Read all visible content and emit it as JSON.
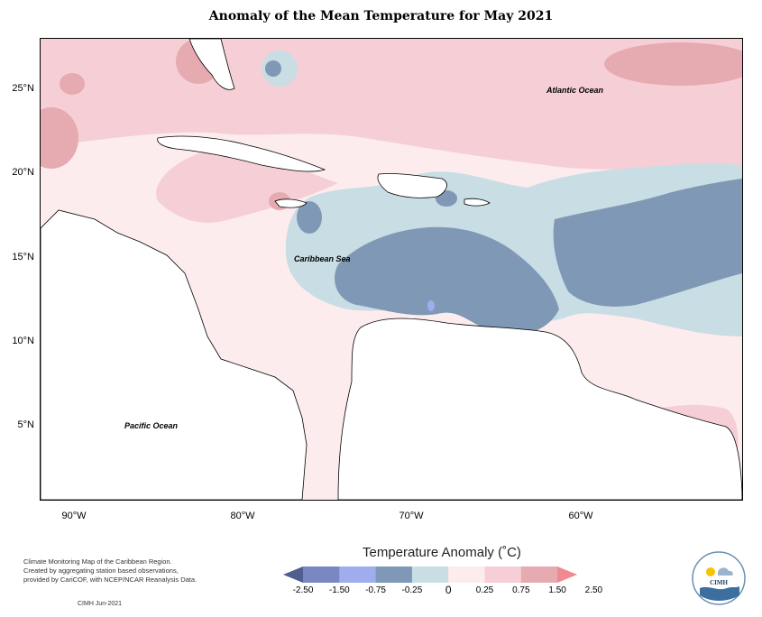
{
  "title": "Anomaly of the Mean Temperature for May 2021",
  "axes": {
    "lat_ticks": [
      "25°N",
      "20°N",
      "15°N",
      "10°N",
      "5°N"
    ],
    "lon_ticks": [
      "90°W",
      "80°W",
      "70°W",
      "60°W"
    ]
  },
  "labels": {
    "atlantic": "Atlantic Ocean",
    "caribbean": "Caribbean Sea",
    "pacific": "Pacific Ocean"
  },
  "footer": {
    "lines": [
      "Climate Monitoring Map of the Caribbean Region.",
      "Created by aggregating station based observations,",
      "provided by CariCOF, with NCEP/NCAR Reanalysis Data."
    ],
    "date": "CIMH  Jun-2021"
  },
  "legend": {
    "title": "Temperature Anomaly (˚C)",
    "labels": [
      "-2.50",
      "-1.50",
      "-0.75",
      "-0.25",
      "0",
      "0.25",
      "0.75",
      "1.50",
      "2.50"
    ],
    "colors": [
      "#4f5d8f",
      "#7a88c2",
      "#9fadee",
      "#7f98b5",
      "#c9dde4",
      "#fdecee",
      "#f6cfd6",
      "#e6aab1",
      "#f08a8e"
    ]
  },
  "logo": {
    "text": "CIMH"
  }
}
